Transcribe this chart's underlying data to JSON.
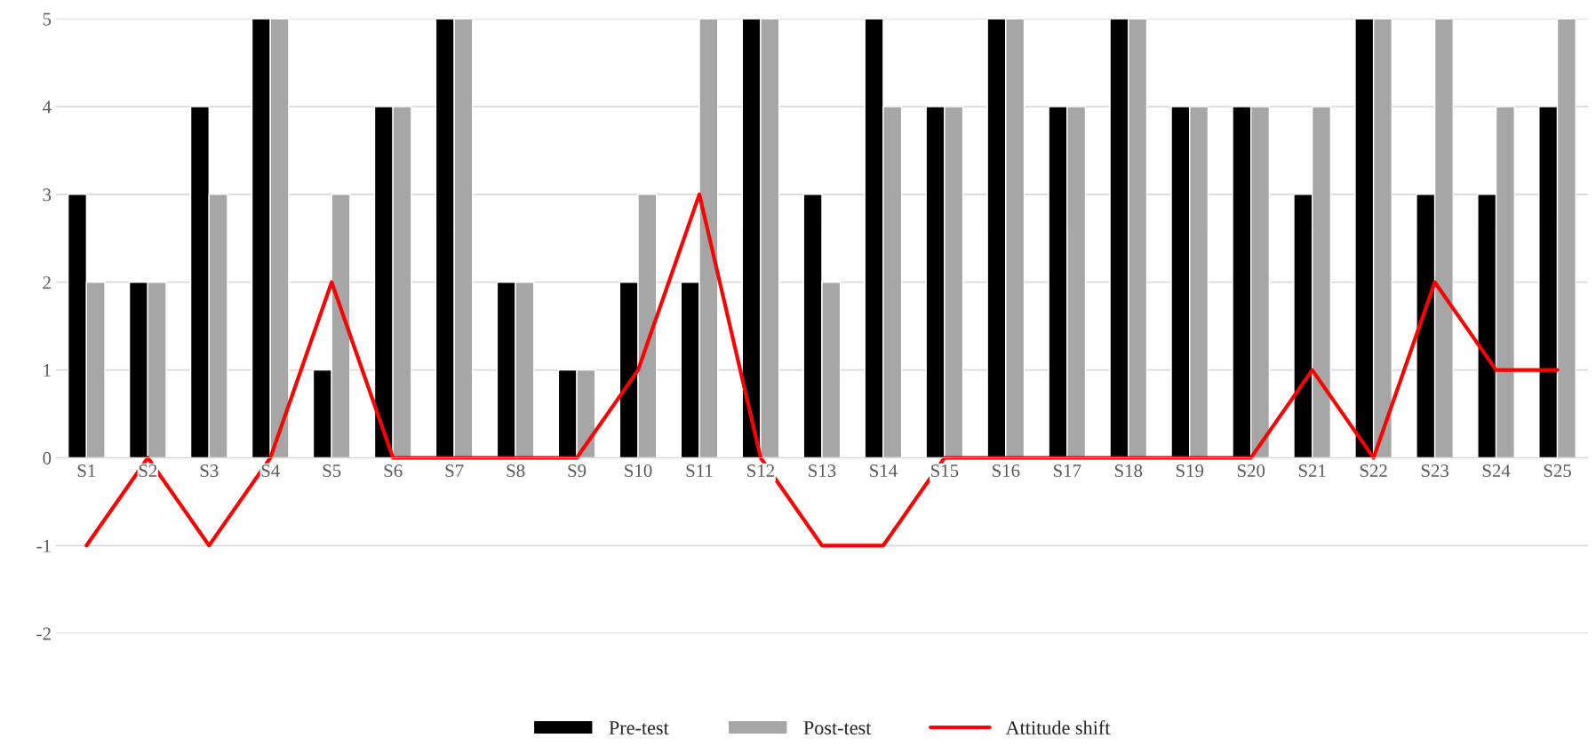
{
  "chart_data": {
    "type": "bar",
    "categories": [
      "S1",
      "S2",
      "S3",
      "S4",
      "S5",
      "S6",
      "S7",
      "S8",
      "S9",
      "S10",
      "S11",
      "S12",
      "S13",
      "S14",
      "S15",
      "S16",
      "S17",
      "S18",
      "S19",
      "S20",
      "S21",
      "S22",
      "S23",
      "S24",
      "S25"
    ],
    "series": [
      {
        "name": "Pre-test",
        "color": "#000000",
        "values": [
          3,
          2,
          4,
          5,
          1,
          4,
          5,
          2,
          1,
          2,
          2,
          5,
          3,
          5,
          4,
          5,
          4,
          5,
          4,
          4,
          3,
          5,
          3,
          3,
          4
        ]
      },
      {
        "name": "Post-test",
        "color": "#a6a6a6",
        "values": [
          2,
          2,
          3,
          5,
          3,
          4,
          5,
          2,
          1,
          3,
          5,
          5,
          2,
          4,
          4,
          5,
          4,
          5,
          4,
          4,
          4,
          5,
          5,
          4,
          5
        ]
      },
      {
        "name": "Attitude shift",
        "type": "line",
        "color": "#ff0000",
        "values": [
          -1,
          0,
          -1,
          0,
          2,
          0,
          0,
          0,
          0,
          1,
          3,
          0,
          -1,
          -1,
          0,
          0,
          0,
          0,
          0,
          0,
          1,
          0,
          2,
          1,
          1
        ]
      }
    ],
    "ylim": [
      -2,
      5
    ],
    "yticks": [
      -2,
      -1,
      0,
      1,
      2,
      3,
      4,
      5
    ],
    "grid": "y",
    "legend": "bottom",
    "line_style": "solid",
    "marker": "none"
  }
}
